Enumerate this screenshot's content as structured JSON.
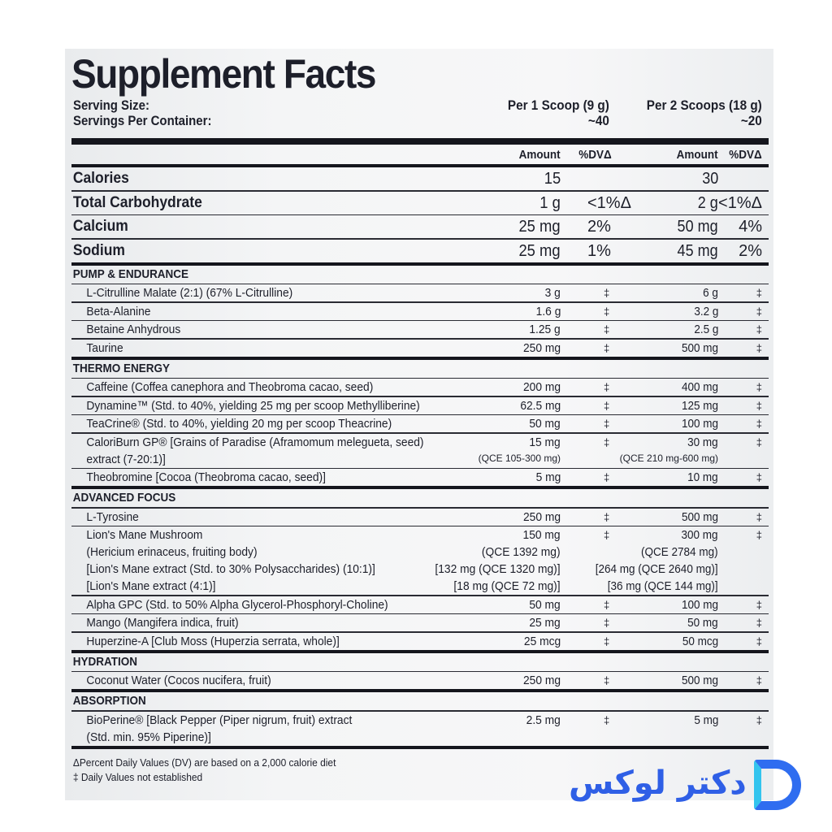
{
  "title": "Supplement Facts",
  "serving": {
    "size_label": "Serving Size:",
    "per_container_label": "Servings Per Container:",
    "col1": "Per 1 Scoop (9 g)",
    "col1_servings": "~40",
    "col2": "Per 2 Scoops (18 g)",
    "col2_servings": "~20"
  },
  "columns": {
    "amount": "Amount",
    "dv": "%DVΔ"
  },
  "top_rows": [
    {
      "name": "Calories",
      "a1": "15",
      "d1": "",
      "a2": "30",
      "d2": ""
    },
    {
      "name": "Total Carbohydrate",
      "a1": "1 g",
      "d1": "<1%Δ",
      "a2": "2 g",
      "d2": "<1%Δ"
    },
    {
      "name": "Calcium",
      "a1": "25 mg",
      "d1": "2%",
      "a2": "50 mg",
      "d2": "4%"
    },
    {
      "name": "Sodium",
      "a1": "25 mg",
      "d1": "1%",
      "a2": "45 mg",
      "d2": "2%"
    }
  ],
  "sections": [
    {
      "title": "PUMP & ENDURANCE",
      "rows": [
        {
          "name": "L-Citrulline Malate (2:1) (67% L-Citrulline)",
          "a1": "3 g",
          "d1": "‡",
          "a2": "6 g",
          "d2": "‡"
        },
        {
          "name": "Beta-Alanine",
          "a1": "1.6 g",
          "d1": "‡",
          "a2": "3.2 g",
          "d2": "‡"
        },
        {
          "name": "Betaine Anhydrous",
          "a1": "1.25 g",
          "d1": "‡",
          "a2": "2.5 g",
          "d2": "‡"
        },
        {
          "name": "Taurine",
          "a1": "250 mg",
          "d1": "‡",
          "a2": "500 mg",
          "d2": "‡"
        }
      ]
    },
    {
      "title": "THERMO ENERGY",
      "rows": [
        {
          "name": "Caffeine (Coffea canephora and Theobroma cacao, seed)",
          "a1": "200 mg",
          "d1": "‡",
          "a2": "400 mg",
          "d2": "‡"
        },
        {
          "name": "Dynamine™ (Std. to 40%, yielding 25 mg per scoop Methylliberine)",
          "a1": "62.5 mg",
          "d1": "‡",
          "a2": "125 mg",
          "d2": "‡"
        },
        {
          "name": "TeaCrine® (Std. to 40%, yielding 20 mg per scoop Theacrine)",
          "a1": "50 mg",
          "d1": "‡",
          "a2": "100 mg",
          "d2": "‡"
        },
        {
          "name": "CaloriBurn GP® [Grains of Paradise (Aframomum melegueta, seed)\n   extract (7-20:1)]",
          "a1": "15 mg",
          "a1_sub": "(QCE 105-300 mg)",
          "d1": "‡",
          "a2": "30 mg",
          "a2_sub": "(QCE 210 mg-600 mg)",
          "d2": "‡"
        },
        {
          "name": "Theobromine [Cocoa (Theobroma cacao, seed)]",
          "a1": "5 mg",
          "d1": "‡",
          "a2": "10 mg",
          "d2": "‡"
        }
      ]
    },
    {
      "title": "ADVANCED FOCUS",
      "rows": [
        {
          "name": "L-Tyrosine",
          "a1": "250 mg",
          "d1": "‡",
          "a2": "500 mg",
          "d2": "‡"
        },
        {
          "name": "Lion's Mane Mushroom\n   (Hericium erinaceus, fruiting body)\n      [Lion's Mane extract (Std. to 30% Polysaccharides) (10:1)]\n      [Lion's Mane extract (4:1)]",
          "a1": "150 mg\n(QCE 1392 mg)\n[132 mg (QCE 1320 mg)]\n[18 mg (QCE 72 mg)]",
          "d1": "‡",
          "a2": "300 mg\n(QCE 2784 mg)\n[264 mg (QCE 2640 mg)]\n[36 mg (QCE 144 mg)]",
          "d2": "‡"
        },
        {
          "name": "Alpha GPC (Std. to 50% Alpha Glycerol-Phosphoryl-Choline)",
          "a1": "50 mg",
          "d1": "‡",
          "a2": "100 mg",
          "d2": "‡"
        },
        {
          "name": "Mango (Mangifera indica, fruit)",
          "a1": "25 mg",
          "d1": "‡",
          "a2": "50 mg",
          "d2": "‡"
        },
        {
          "name": "Huperzine-A [Club Moss (Huperzia serrata, whole)]",
          "a1": "25 mcg",
          "d1": "‡",
          "a2": "50 mcg",
          "d2": "‡"
        }
      ]
    },
    {
      "title": "HYDRATION",
      "rows": [
        {
          "name": "Coconut Water (Cocos nucifera, fruit)",
          "a1": "250 mg",
          "d1": "‡",
          "a2": "500 mg",
          "d2": "‡"
        }
      ]
    },
    {
      "title": "ABSORPTION",
      "rows": [
        {
          "name": "BioPerine® [Black Pepper (Piper nigrum, fruit) extract\n   (Std. min. 95% Piperine)]",
          "a1": "2.5 mg",
          "d1": "‡",
          "a2": "5 mg",
          "d2": "‡"
        }
      ]
    }
  ],
  "footnotes": [
    "ΔPercent Daily Values (DV) are based on a 2,000 calorie diet",
    "‡ Daily Values not established"
  ],
  "logo": {
    "text": "دکتر لوکس",
    "icon": "d-letter-logo",
    "color": "#2f5fe6"
  }
}
